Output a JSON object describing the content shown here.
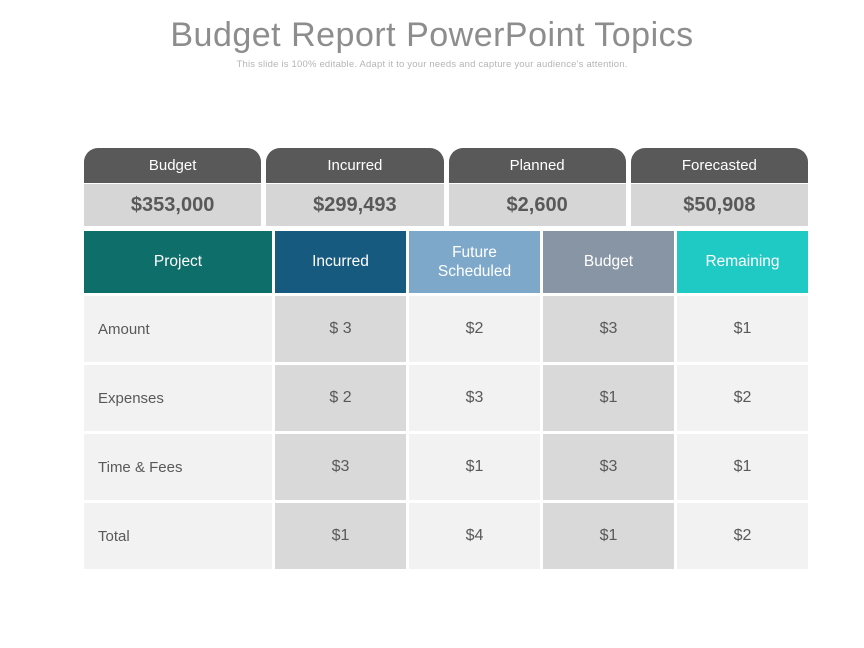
{
  "slide": {
    "title": "Budget Report PowerPoint Topics",
    "subtitle": "This slide is 100% editable. Adapt it to your needs and capture your audience's attention."
  },
  "summary": {
    "items": [
      {
        "label": "Budget",
        "value": "$353,000"
      },
      {
        "label": "Incurred",
        "value": "$299,493"
      },
      {
        "label": "Planned",
        "value": "$2,600"
      },
      {
        "label": "Forecasted",
        "value": "$50,908"
      }
    ]
  },
  "table": {
    "columns": [
      {
        "label": "Project",
        "color": "#0e6e6a"
      },
      {
        "label": "Incurred",
        "color": "#175a80"
      },
      {
        "label": "Future Scheduled",
        "color": "#7ea8ca"
      },
      {
        "label": "Budget",
        "color": "#8795a5"
      },
      {
        "label": "Remaining",
        "color": "#1fc9c4"
      }
    ],
    "rows": [
      {
        "label": "Amount",
        "values": [
          "$ 3",
          "$2",
          "$3",
          "$1"
        ]
      },
      {
        "label": "Expenses",
        "values": [
          "$ 2",
          "$3",
          "$1",
          "$2"
        ]
      },
      {
        "label": "Time & Fees",
        "values": [
          "$3",
          "$1",
          "$3",
          "$1"
        ]
      },
      {
        "label": "Total",
        "values": [
          "$1",
          "$4",
          "$1",
          "$2"
        ]
      }
    ]
  },
  "colors": {
    "tab_background": "#595959",
    "summary_value_background": "#d6d6d6",
    "row_light_background": "#f2f2f2",
    "row_shaded_background": "#d9d9d9",
    "body_text": "#595959",
    "title_text": "#8d8d8d",
    "subtitle_text": "#b5b5b5",
    "header_text": "#ffffff"
  }
}
